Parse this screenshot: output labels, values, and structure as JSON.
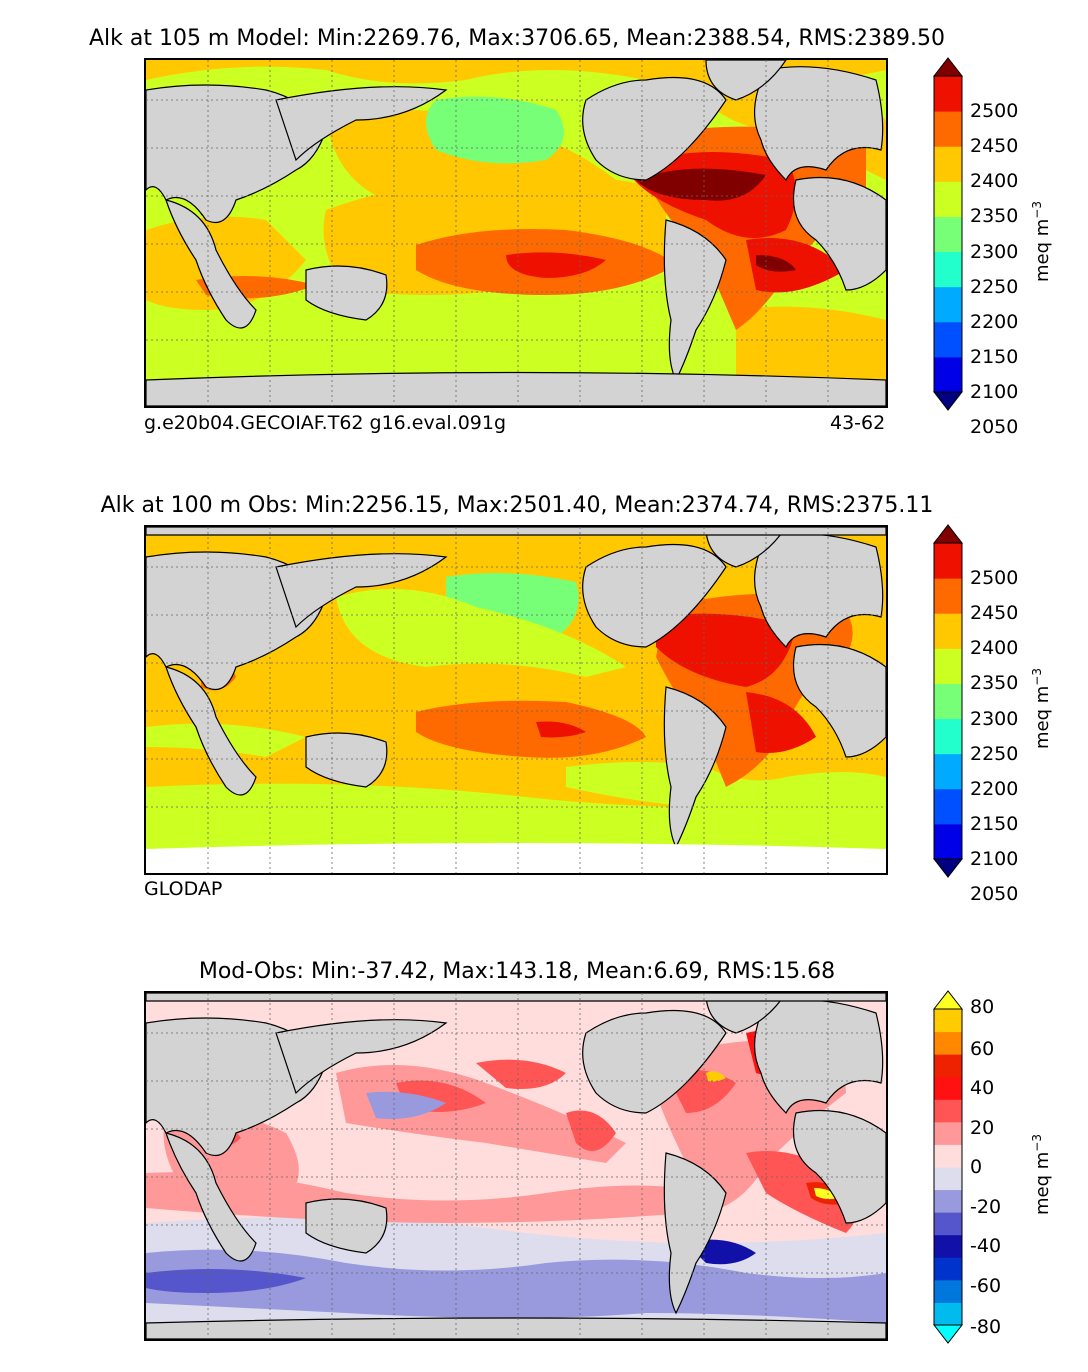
{
  "panels": [
    {
      "title": "Alk at 105 m Model: Min:2269.76, Max:3706.65, Mean:2388.54, RMS:2389.50",
      "caption_left": "g.e20b04.GECOIAF.T62 g16.eval.091g",
      "caption_right": "43-62",
      "colorbar_label": "meq m",
      "colorbar_label_sup": "−3",
      "ticks": [
        "2500",
        "2450",
        "2400",
        "2350",
        "2300",
        "2250",
        "2200",
        "2150",
        "2100",
        "2050"
      ],
      "colors": [
        "#000080",
        "#0000e6",
        "#0050ff",
        "#00aaff",
        "#22ffcc",
        "#77ff77",
        "#ccff22",
        "#ffc800",
        "#ff6a00",
        "#ee1100",
        "#800000"
      ]
    },
    {
      "title": "Alk at 100 m Obs: Min:2256.15, Max:2501.40, Mean:2374.74, RMS:2375.11",
      "caption_left": "GLODAP",
      "caption_right": "",
      "colorbar_label": "meq m",
      "colorbar_label_sup": "−3",
      "ticks": [
        "2500",
        "2450",
        "2400",
        "2350",
        "2300",
        "2250",
        "2200",
        "2150",
        "2100",
        "2050"
      ],
      "colors": [
        "#000080",
        "#0000e6",
        "#0050ff",
        "#00aaff",
        "#22ffcc",
        "#77ff77",
        "#ccff22",
        "#ffc800",
        "#ff6a00",
        "#ee1100",
        "#800000"
      ]
    },
    {
      "title": "Mod-Obs: Min:-37.42, Max:143.18, Mean:6.69, RMS:15.68",
      "caption_left": "",
      "caption_right": "",
      "colorbar_label": "meq m",
      "colorbar_label_sup": "−3",
      "ticks": [
        "80",
        "60",
        "40",
        "20",
        "0",
        "-20",
        "-40",
        "-60",
        "-80"
      ],
      "colors": [
        "#00ffff",
        "#00bbee",
        "#0077dd",
        "#0033cc",
        "#1111aa",
        "#5555cc",
        "#9999dd",
        "#ddddee",
        "#ffdddd",
        "#ff9999",
        "#ff5555",
        "#ff1111",
        "#ee2200",
        "#ff8800",
        "#ffcc00",
        "#ffff22"
      ]
    }
  ],
  "colors": {
    "land": "#d3d3d3",
    "coast": "#000000",
    "grid": "#666666",
    "background": "#ffffff"
  }
}
